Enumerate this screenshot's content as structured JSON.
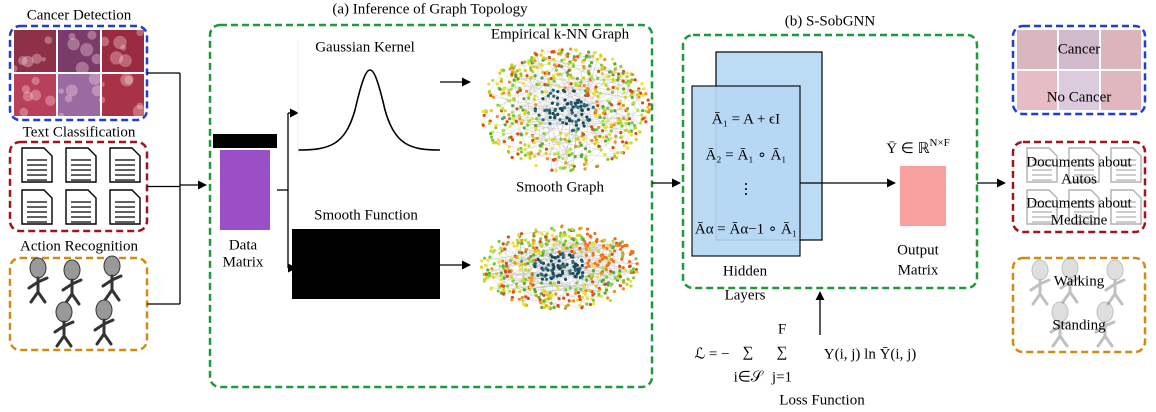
{
  "inputs": [
    {
      "label": "Cancer Detection"
    },
    {
      "label": "Text Classification"
    },
    {
      "label": "Action Recognition"
    }
  ],
  "section_a": {
    "title": "(a) Inference of Graph Topology",
    "data_matrix": [
      "Data",
      "Matrix"
    ],
    "gaussian_kernel": "Gaussian Kernel",
    "smooth_function": "Smooth Function",
    "knn_graph": "Empirical k-NN Graph",
    "smooth_graph": "Smooth Graph"
  },
  "section_b": {
    "title": "(b) S-SobGNN",
    "equations": [
      "Ā₁ = A + ϵI",
      "Ā₂ = Ā₁ ∘ Ā₁",
      "⋮",
      "Āα = Āα−1 ∘ Ā₁"
    ],
    "hidden_layers": [
      "Hidden",
      "Layers"
    ],
    "output_symbol": {
      "base": "Ȳ ∈ ℝ",
      "sup": "N×F"
    },
    "output_matrix": [
      "Output",
      "Matrix"
    ]
  },
  "loss": {
    "lhs": "ℒ = −",
    "sum": "∑",
    "sub1": "i∈𝒮",
    "sub2": "j=1",
    "sup2": "F",
    "rhs": "Y(i, j) ln Ȳ(i, j)",
    "label": "Loss Function"
  },
  "outputs": [
    {
      "lines": [
        "Cancer",
        "No Cancer"
      ]
    },
    {
      "lines": [
        "Documents about",
        "Autos",
        "Documents about",
        "Medicine"
      ]
    },
    {
      "lines": [
        "Walking",
        "Standing"
      ]
    }
  ]
}
